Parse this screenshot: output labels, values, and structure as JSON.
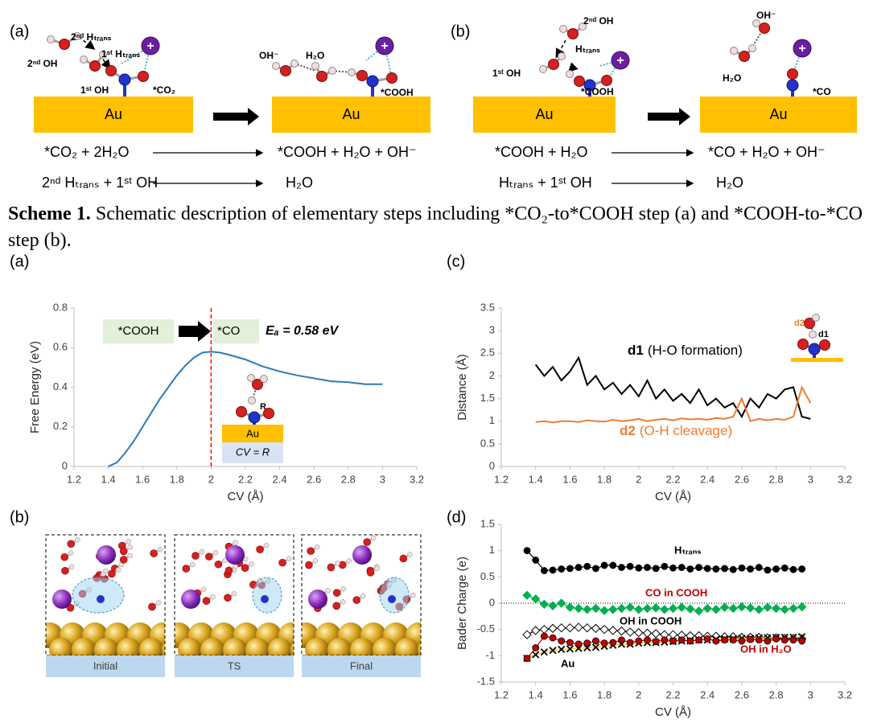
{
  "scheme": {
    "panels": [
      {
        "label": "(a)",
        "surface": "Au",
        "ion": "+",
        "left_labels": [
          "2ⁿᵈ Hₜᵣₐₙₛ",
          "1ˢᵗ Hₜᵣₐₙₛ",
          "2ⁿᵈ OH",
          "1ˢᵗ OH",
          "*CO₂"
        ],
        "right_labels": [
          "OH⁻",
          "H₂O",
          "*COOH"
        ],
        "equations": [
          {
            "left": "*CO₂ + 2H₂O",
            "right": "*COOH + H₂O + OH⁻"
          },
          {
            "left": "2ⁿᵈ Hₜᵣₐₙₛ + 1ˢᵗ OH",
            "right": "H₂O"
          }
        ]
      },
      {
        "label": "(b)",
        "surface": "Au",
        "ion": "+",
        "left_labels": [
          "2ⁿᵈ OH",
          "Hₜᵣₐₙₛ",
          "1ˢᵗ OH",
          "*COOH"
        ],
        "right_labels": [
          "OH⁻",
          "H₂O",
          "*CO"
        ],
        "equations": [
          {
            "left": "*COOH + H₂O",
            "right": "*CO + H₂O + OH⁻"
          },
          {
            "left": "Hₜᵣₐₙₛ + 1ˢᵗ OH",
            "right": "H₂O"
          }
        ]
      }
    ]
  },
  "caption": {
    "label": "Scheme 1.",
    "text": "Schematic description of elementary steps including *CO₂-to*COOH step (a) and *COOH-to-*CO step (b)."
  },
  "chart_data": [
    {
      "type": "line",
      "label": "(a)",
      "x_label": "CV (Å)",
      "y_label": "Free Energy (eV)",
      "x": [
        1.4,
        1.45,
        1.5,
        1.55,
        1.6,
        1.65,
        1.7,
        1.75,
        1.8,
        1.85,
        1.9,
        1.95,
        2.0,
        2.05,
        2.1,
        2.2,
        2.3,
        2.4,
        2.5,
        2.6,
        2.7,
        2.8,
        2.9,
        3.0
      ],
      "values": [
        0,
        0.02,
        0.07,
        0.13,
        0.2,
        0.27,
        0.34,
        0.4,
        0.46,
        0.51,
        0.55,
        0.575,
        0.58,
        0.575,
        0.565,
        0.54,
        0.505,
        0.48,
        0.46,
        0.445,
        0.43,
        0.425,
        0.415,
        0.415
      ],
      "color": "#2a7ab9",
      "xlim": [
        1.2,
        3.2
      ],
      "xticks": [
        1.2,
        1.4,
        1.6,
        1.8,
        2,
        2.2,
        2.4,
        2.6,
        2.8,
        3,
        3.2
      ],
      "ylim": [
        0,
        0.8
      ],
      "yticks": [
        0,
        0.2,
        0.4,
        0.6,
        0.8
      ],
      "vline": 2,
      "vline_color": "#ff0000",
      "annotations": {
        "initial": "*COOH",
        "final": "*CO",
        "barrier": "Eₐ = 0.58 eV",
        "inset_bond": "R",
        "inset_surface": "Au",
        "inset_cv": "CV = R"
      }
    },
    {
      "type": "line",
      "label": "(c)",
      "x_label": "CV (Å)",
      "y_label": "Distance (Å)",
      "x": [
        1.4,
        1.45,
        1.5,
        1.55,
        1.6,
        1.65,
        1.7,
        1.75,
        1.8,
        1.85,
        1.9,
        1.95,
        2.0,
        2.05,
        2.1,
        2.15,
        2.2,
        2.25,
        2.3,
        2.35,
        2.4,
        2.45,
        2.5,
        2.55,
        2.6,
        2.65,
        2.7,
        2.75,
        2.8,
        2.85,
        2.9,
        2.95,
        3.0
      ],
      "series": [
        {
          "name": "d1",
          "description": "(H-O formation)",
          "color": "#000000",
          "values": [
            2.25,
            2.0,
            2.2,
            1.9,
            2.1,
            2.4,
            1.8,
            2.0,
            1.7,
            1.85,
            1.6,
            1.8,
            1.55,
            1.9,
            1.5,
            1.7,
            1.45,
            1.6,
            1.4,
            1.7,
            1.35,
            1.5,
            1.3,
            1.4,
            1.1,
            1.5,
            1.3,
            1.6,
            1.5,
            1.7,
            1.75,
            1.1,
            1.05
          ]
        },
        {
          "name": "d2",
          "description": "(O-H cleavage)",
          "color": "#ed7d31",
          "values": [
            0.98,
            1.0,
            0.97,
            1.0,
            1.0,
            0.98,
            1.02,
            1.0,
            0.99,
            1.03,
            1.0,
            1.02,
            1.05,
            1.0,
            1.03,
            1.05,
            1.02,
            1.06,
            1.04,
            1.05,
            1.03,
            1.07,
            1.05,
            1.1,
            1.5,
            1.0,
            1.05,
            1.02,
            1.05,
            1.03,
            1.1,
            1.75,
            1.4
          ]
        }
      ],
      "xlim": [
        1.2,
        3.2
      ],
      "xticks": [
        1.2,
        1.4,
        1.6,
        1.8,
        2,
        2.2,
        2.4,
        2.6,
        2.8,
        3,
        3.2
      ],
      "ylim": [
        0,
        3.5
      ],
      "yticks": [
        0,
        0.5,
        1,
        1.5,
        2,
        2.5,
        3,
        3.5
      ]
    },
    {
      "type": "line",
      "label": "(d)",
      "x_label": "CV (Å)",
      "y_label": "Bader Charge (e)",
      "x": [
        1.35,
        1.4,
        1.45,
        1.5,
        1.55,
        1.6,
        1.65,
        1.7,
        1.75,
        1.8,
        1.85,
        1.9,
        1.95,
        2.0,
        2.05,
        2.1,
        2.15,
        2.2,
        2.25,
        2.3,
        2.35,
        2.4,
        2.45,
        2.5,
        2.55,
        2.6,
        2.65,
        2.7,
        2.75,
        2.8,
        2.85,
        2.9,
        2.95
      ],
      "series": [
        {
          "name": "Hₜᵣₐₙₛ",
          "color": "#000000",
          "marker": "circle",
          "label_color": "#000000",
          "values": [
            1.0,
            0.82,
            0.62,
            0.63,
            0.65,
            0.66,
            0.68,
            0.7,
            0.66,
            0.72,
            0.72,
            0.68,
            0.7,
            0.67,
            0.68,
            0.66,
            0.7,
            0.67,
            0.68,
            0.65,
            0.68,
            0.66,
            0.65,
            0.66,
            0.64,
            0.67,
            0.65,
            0.68,
            0.63,
            0.65,
            0.67,
            0.64,
            0.65
          ]
        },
        {
          "name": "CO in COOH",
          "color": "#00b050",
          "marker": "diamond",
          "label_color": "#c00000",
          "values": [
            0.15,
            0.08,
            -0.02,
            -0.05,
            0.0,
            -0.08,
            -0.1,
            -0.12,
            -0.1,
            -0.14,
            -0.12,
            -0.1,
            -0.08,
            -0.12,
            -0.1,
            -0.09,
            -0.12,
            -0.1,
            -0.08,
            -0.11,
            -0.15,
            -0.1,
            -0.12,
            -0.08,
            -0.1,
            -0.07,
            -0.09,
            -0.12,
            -0.08,
            -0.1,
            -0.12,
            -0.1,
            -0.07
          ]
        },
        {
          "name": "OH in COOH",
          "color": "#000000",
          "marker": "open-diamond",
          "label_color": "#000000",
          "values": [
            -0.6,
            -0.52,
            -0.5,
            -0.48,
            -0.47,
            -0.47,
            -0.46,
            -0.47,
            -0.48,
            -0.5,
            -0.52,
            -0.53,
            -0.55,
            -0.56,
            -0.57,
            -0.58,
            -0.6,
            -0.6,
            -0.61,
            -0.62,
            -0.62,
            -0.63,
            -0.63,
            -0.64,
            -0.64,
            -0.65,
            -0.65,
            -0.65,
            -0.66,
            -0.66,
            -0.67,
            -0.67,
            -0.68
          ]
        },
        {
          "name": "Au",
          "color": "#ffc000",
          "marker": "x",
          "label_color": "#000000",
          "values": [
            -1.05,
            -0.98,
            -0.93,
            -0.9,
            -0.88,
            -0.87,
            -0.86,
            -0.85,
            -0.84,
            -0.82,
            -0.8,
            -0.78,
            -0.78,
            -0.76,
            -0.75,
            -0.75,
            -0.74,
            -0.73,
            -0.72,
            -0.72,
            -0.7,
            -0.7,
            -0.69,
            -0.68,
            -0.68,
            -0.67,
            -0.67,
            -0.66,
            -0.66,
            -0.65,
            -0.65,
            -0.65,
            -0.64
          ]
        },
        {
          "name": "OH in H₂O",
          "color": "#c00000",
          "marker": "circle",
          "label_color": "#c00000",
          "values": [
            -1.05,
            -0.85,
            -0.63,
            -0.66,
            -0.72,
            -0.75,
            -0.78,
            -0.76,
            -0.72,
            -0.76,
            -0.75,
            -0.7,
            -0.75,
            -0.72,
            -0.7,
            -0.73,
            -0.7,
            -0.72,
            -0.7,
            -0.72,
            -0.7,
            -0.68,
            -0.72,
            -0.7,
            -0.7,
            -0.72,
            -0.69,
            -0.7,
            -0.72,
            -0.68,
            -0.7,
            -0.7,
            -0.72
          ]
        }
      ],
      "xlim": [
        1.2,
        3.2
      ],
      "xticks": [
        1.2,
        1.4,
        1.6,
        1.8,
        2,
        2.2,
        2.4,
        2.6,
        2.8,
        3,
        3.2
      ],
      "ylim": [
        -1.5,
        1.5
      ],
      "yticks": [
        -1.5,
        -1,
        -0.5,
        0,
        0.5,
        1,
        1.5
      ],
      "hline": 0
    }
  ],
  "snapshots": {
    "label": "(b)",
    "frames": [
      "Initial",
      "TS",
      "Final"
    ]
  }
}
